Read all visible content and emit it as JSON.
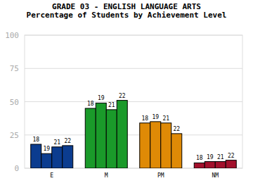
{
  "chart_data": {
    "type": "bar",
    "title": "GRADE 03 - ENGLISH LANGUAGE ARTS",
    "subtitle": "Percentage of Students by Achievement Level",
    "categories": [
      "E",
      "M",
      "PM",
      "NM"
    ],
    "colors": [
      "#0b3c8f",
      "#1a9a2a",
      "#df8a06",
      "#a3102c"
    ],
    "series": [
      {
        "name": "18",
        "values": [
          18,
          45,
          34,
          4
        ]
      },
      {
        "name": "19",
        "values": [
          11,
          49,
          35,
          5
        ]
      },
      {
        "name": "21",
        "values": [
          16,
          44,
          34,
          5
        ]
      },
      {
        "name": "22",
        "values": [
          17,
          51,
          26,
          6
        ]
      }
    ],
    "ylim": [
      0,
      100
    ],
    "yticks": [
      0,
      25,
      50,
      75,
      100
    ],
    "grid": true
  }
}
